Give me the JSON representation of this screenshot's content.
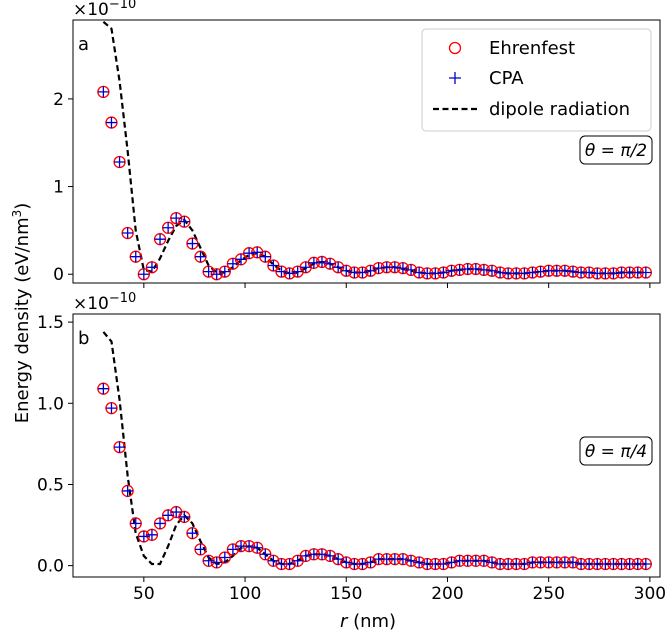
{
  "figure": {
    "ylabel": "Energy density (eV/nm",
    "ylabel_sup": "3",
    "ylabel_close": ")",
    "xlabel_var": "r",
    "xlabel_unit": " (nm)",
    "legend": {
      "placement": "top-right",
      "entries": [
        {
          "name": "Ehrenfest",
          "marker": "circle",
          "color": "#ff0000"
        },
        {
          "name": "CPA",
          "marker": "plus",
          "color": "#0000cc"
        },
        {
          "name": "dipole radiation",
          "marker": "dashed-line",
          "color": "#000000"
        }
      ]
    },
    "colors": {
      "ehrenfest": "#ff0000",
      "cpa": "#0000cc",
      "dipole": "#000000"
    }
  },
  "chart_data": [
    {
      "type": "scatter",
      "panel_label": "a",
      "annotation": "θ = π/2",
      "exponent_label": "×10",
      "exponent_sup": "−10",
      "xlim": [
        15,
        305
      ],
      "ylim": [
        -0.1,
        2.9
      ],
      "xticks": [
        50,
        100,
        150,
        200,
        250,
        300
      ],
      "yticks": [
        0,
        1,
        2
      ],
      "grid": false,
      "series": [
        {
          "name": "Ehrenfest",
          "x": [
            30,
            34,
            38,
            42,
            46,
            50,
            54,
            58,
            62,
            66,
            70,
            74,
            78,
            82,
            86,
            90,
            94,
            98,
            102,
            106,
            110,
            114,
            118,
            122,
            126,
            130,
            134,
            138,
            142,
            146,
            150,
            154,
            158,
            162,
            166,
            170,
            174,
            178,
            182,
            186,
            190,
            194,
            198,
            202,
            206,
            210,
            214,
            218,
            222,
            226,
            230,
            234,
            238,
            242,
            246,
            250,
            254,
            258,
            262,
            266,
            270,
            274,
            278,
            282,
            286,
            290,
            294,
            298
          ],
          "y": [
            2.08,
            1.73,
            1.28,
            0.47,
            0.2,
            0.0,
            0.08,
            0.4,
            0.53,
            0.64,
            0.6,
            0.35,
            0.2,
            0.03,
            0.0,
            0.03,
            0.12,
            0.17,
            0.24,
            0.25,
            0.2,
            0.1,
            0.03,
            0.01,
            0.03,
            0.08,
            0.13,
            0.14,
            0.12,
            0.08,
            0.04,
            0.02,
            0.02,
            0.04,
            0.07,
            0.08,
            0.08,
            0.07,
            0.05,
            0.02,
            0.01,
            0.01,
            0.02,
            0.04,
            0.05,
            0.06,
            0.06,
            0.05,
            0.04,
            0.02,
            0.01,
            0.01,
            0.01,
            0.02,
            0.03,
            0.04,
            0.04,
            0.04,
            0.03,
            0.02,
            0.02,
            0.01,
            0.01,
            0.01,
            0.02,
            0.02,
            0.02,
            0.02
          ]
        },
        {
          "name": "CPA",
          "x": [
            30,
            34,
            38,
            42,
            46,
            50,
            54,
            58,
            62,
            66,
            70,
            74,
            78,
            82,
            86,
            90,
            94,
            98,
            102,
            106,
            110,
            114,
            118,
            122,
            126,
            130,
            134,
            138,
            142,
            146,
            150,
            154,
            158,
            162,
            166,
            170,
            174,
            178,
            182,
            186,
            190,
            194,
            198,
            202,
            206,
            210,
            214,
            218,
            222,
            226,
            230,
            234,
            238,
            242,
            246,
            250,
            254,
            258,
            262,
            266,
            270,
            274,
            278,
            282,
            286,
            290,
            294,
            298
          ],
          "y": [
            2.08,
            1.73,
            1.28,
            0.47,
            0.2,
            0.0,
            0.08,
            0.4,
            0.53,
            0.64,
            0.6,
            0.35,
            0.2,
            0.03,
            0.0,
            0.03,
            0.12,
            0.17,
            0.24,
            0.25,
            0.2,
            0.1,
            0.03,
            0.01,
            0.03,
            0.08,
            0.13,
            0.14,
            0.12,
            0.08,
            0.04,
            0.02,
            0.02,
            0.04,
            0.07,
            0.08,
            0.08,
            0.07,
            0.05,
            0.02,
            0.01,
            0.01,
            0.02,
            0.04,
            0.05,
            0.06,
            0.06,
            0.05,
            0.04,
            0.02,
            0.01,
            0.01,
            0.01,
            0.02,
            0.03,
            0.04,
            0.04,
            0.04,
            0.03,
            0.02,
            0.02,
            0.01,
            0.01,
            0.01,
            0.02,
            0.02,
            0.02,
            0.02
          ]
        },
        {
          "name": "dipole radiation",
          "x": [
            30,
            34,
            38,
            42,
            46,
            50,
            54,
            58,
            62,
            66,
            70,
            74,
            78,
            82,
            86,
            90,
            94,
            98,
            102,
            106,
            110,
            114,
            118,
            122,
            126,
            130,
            134,
            138,
            142,
            146,
            150,
            154,
            158,
            162,
            166,
            170,
            174,
            178,
            182,
            186,
            190,
            194,
            198,
            202,
            206,
            210,
            214,
            218,
            222,
            226,
            230,
            234,
            238,
            242,
            246,
            250,
            254,
            258,
            262,
            266,
            270,
            274,
            278,
            282,
            286,
            290,
            294,
            298
          ],
          "y": [
            2.88,
            2.8,
            2.2,
            1.4,
            0.5,
            0.05,
            0.03,
            0.18,
            0.38,
            0.55,
            0.62,
            0.5,
            0.3,
            0.1,
            0.02,
            0.02,
            0.08,
            0.16,
            0.22,
            0.24,
            0.2,
            0.11,
            0.04,
            0.01,
            0.02,
            0.07,
            0.12,
            0.14,
            0.12,
            0.08,
            0.04,
            0.02,
            0.02,
            0.04,
            0.07,
            0.08,
            0.08,
            0.06,
            0.04,
            0.02,
            0.01,
            0.01,
            0.02,
            0.04,
            0.05,
            0.06,
            0.06,
            0.05,
            0.04,
            0.02,
            0.01,
            0.01,
            0.01,
            0.02,
            0.03,
            0.04,
            0.04,
            0.04,
            0.03,
            0.02,
            0.02,
            0.01,
            0.01,
            0.01,
            0.02,
            0.02,
            0.02,
            0.02
          ]
        }
      ]
    },
    {
      "type": "scatter",
      "panel_label": "b",
      "annotation": "θ = π/4",
      "exponent_label": "×10",
      "exponent_sup": "−10",
      "xlim": [
        15,
        305
      ],
      "ylim": [
        -0.07,
        1.55
      ],
      "xticks": [
        50,
        100,
        150,
        200,
        250,
        300
      ],
      "yticks": [
        0.0,
        0.5,
        1.0,
        1.5
      ],
      "grid": false,
      "series": [
        {
          "name": "Ehrenfest",
          "x": [
            30,
            34,
            38,
            42,
            46,
            50,
            54,
            58,
            62,
            66,
            70,
            74,
            78,
            82,
            86,
            90,
            94,
            98,
            102,
            106,
            110,
            114,
            118,
            122,
            126,
            130,
            134,
            138,
            142,
            146,
            150,
            154,
            158,
            162,
            166,
            170,
            174,
            178,
            182,
            186,
            190,
            194,
            198,
            202,
            206,
            210,
            214,
            218,
            222,
            226,
            230,
            234,
            238,
            242,
            246,
            250,
            254,
            258,
            262,
            266,
            270,
            274,
            278,
            282,
            286,
            290,
            294,
            298
          ],
          "y": [
            1.09,
            0.97,
            0.73,
            0.46,
            0.26,
            0.18,
            0.19,
            0.26,
            0.31,
            0.33,
            0.3,
            0.2,
            0.1,
            0.03,
            0.02,
            0.05,
            0.1,
            0.12,
            0.12,
            0.11,
            0.07,
            0.03,
            0.01,
            0.01,
            0.03,
            0.06,
            0.07,
            0.07,
            0.06,
            0.04,
            0.02,
            0.01,
            0.01,
            0.02,
            0.04,
            0.04,
            0.04,
            0.04,
            0.03,
            0.02,
            0.01,
            0.01,
            0.01,
            0.02,
            0.03,
            0.03,
            0.03,
            0.03,
            0.02,
            0.01,
            0.01,
            0.01,
            0.01,
            0.02,
            0.02,
            0.02,
            0.02,
            0.02,
            0.02,
            0.01,
            0.01,
            0.01,
            0.01,
            0.01,
            0.01,
            0.01,
            0.01,
            0.01
          ]
        },
        {
          "name": "CPA",
          "x": [
            30,
            34,
            38,
            42,
            46,
            50,
            54,
            58,
            62,
            66,
            70,
            74,
            78,
            82,
            86,
            90,
            94,
            98,
            102,
            106,
            110,
            114,
            118,
            122,
            126,
            130,
            134,
            138,
            142,
            146,
            150,
            154,
            158,
            162,
            166,
            170,
            174,
            178,
            182,
            186,
            190,
            194,
            198,
            202,
            206,
            210,
            214,
            218,
            222,
            226,
            230,
            234,
            238,
            242,
            246,
            250,
            254,
            258,
            262,
            266,
            270,
            274,
            278,
            282,
            286,
            290,
            294,
            298
          ],
          "y": [
            1.09,
            0.97,
            0.73,
            0.46,
            0.26,
            0.18,
            0.19,
            0.26,
            0.31,
            0.33,
            0.3,
            0.2,
            0.1,
            0.03,
            0.02,
            0.05,
            0.1,
            0.12,
            0.12,
            0.11,
            0.07,
            0.03,
            0.01,
            0.01,
            0.03,
            0.06,
            0.07,
            0.07,
            0.06,
            0.04,
            0.02,
            0.01,
            0.01,
            0.02,
            0.04,
            0.04,
            0.04,
            0.04,
            0.03,
            0.02,
            0.01,
            0.01,
            0.01,
            0.02,
            0.03,
            0.03,
            0.03,
            0.03,
            0.02,
            0.01,
            0.01,
            0.01,
            0.01,
            0.02,
            0.02,
            0.02,
            0.02,
            0.02,
            0.02,
            0.01,
            0.01,
            0.01,
            0.01,
            0.01,
            0.01,
            0.01,
            0.01,
            0.01
          ]
        },
        {
          "name": "dipole radiation",
          "x": [
            30,
            34,
            38,
            42,
            46,
            50,
            54,
            58,
            62,
            66,
            70,
            74,
            78,
            82,
            86,
            90,
            94,
            98,
            102,
            106,
            110,
            114,
            118,
            122,
            126,
            130,
            134,
            138,
            142,
            146,
            150,
            154,
            158,
            162,
            166,
            170,
            174,
            178,
            182,
            186,
            190,
            194,
            198,
            202,
            206,
            210,
            214,
            218,
            222,
            226,
            230,
            234,
            238,
            242,
            246,
            250,
            254,
            258,
            262,
            266,
            270,
            274,
            278,
            282,
            286,
            290,
            294,
            298
          ],
          "y": [
            1.44,
            1.38,
            1.02,
            0.55,
            0.2,
            0.06,
            0.01,
            0.01,
            0.12,
            0.25,
            0.31,
            0.26,
            0.15,
            0.05,
            0.01,
            0.02,
            0.06,
            0.11,
            0.12,
            0.11,
            0.07,
            0.03,
            0.01,
            0.01,
            0.03,
            0.06,
            0.07,
            0.07,
            0.06,
            0.04,
            0.02,
            0.01,
            0.01,
            0.02,
            0.04,
            0.04,
            0.04,
            0.04,
            0.03,
            0.02,
            0.01,
            0.01,
            0.01,
            0.02,
            0.03,
            0.03,
            0.03,
            0.03,
            0.02,
            0.01,
            0.01,
            0.01,
            0.01,
            0.02,
            0.02,
            0.02,
            0.02,
            0.02,
            0.02,
            0.01,
            0.01,
            0.01,
            0.01,
            0.01,
            0.01,
            0.01,
            0.01,
            0.01
          ]
        }
      ]
    }
  ]
}
